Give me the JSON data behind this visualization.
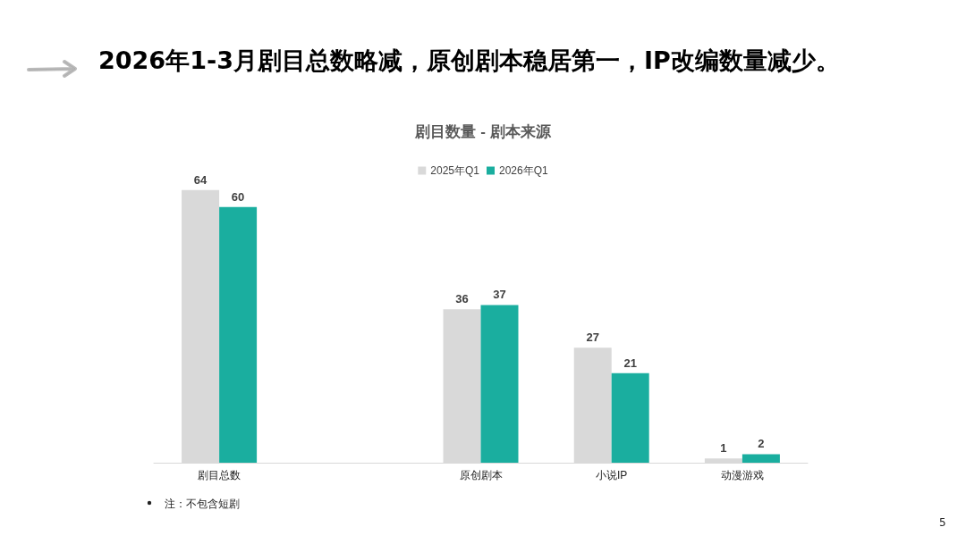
{
  "chart_data": {
    "type": "bar",
    "title": "2026年1-3月剧目总数略减，原创剧本稳居第一，IP改编数量减少。",
    "subtitle": "剧目数量 - 剧本来源",
    "categories": [
      "剧目总数",
      null,
      "原创剧本",
      "小说IP",
      "动漫游戏"
    ],
    "series": [
      {
        "name": "2025年Q1",
        "color": "#d9d9d9",
        "values": [
          64,
          null,
          36,
          27,
          1
        ]
      },
      {
        "name": "2026年Q1",
        "color": "#1aae9f",
        "values": [
          60,
          null,
          37,
          21,
          2
        ]
      }
    ],
    "data_labels": true,
    "legend": "top",
    "annotations": [
      "注：不包含短剧",
      "5"
    ]
  }
}
